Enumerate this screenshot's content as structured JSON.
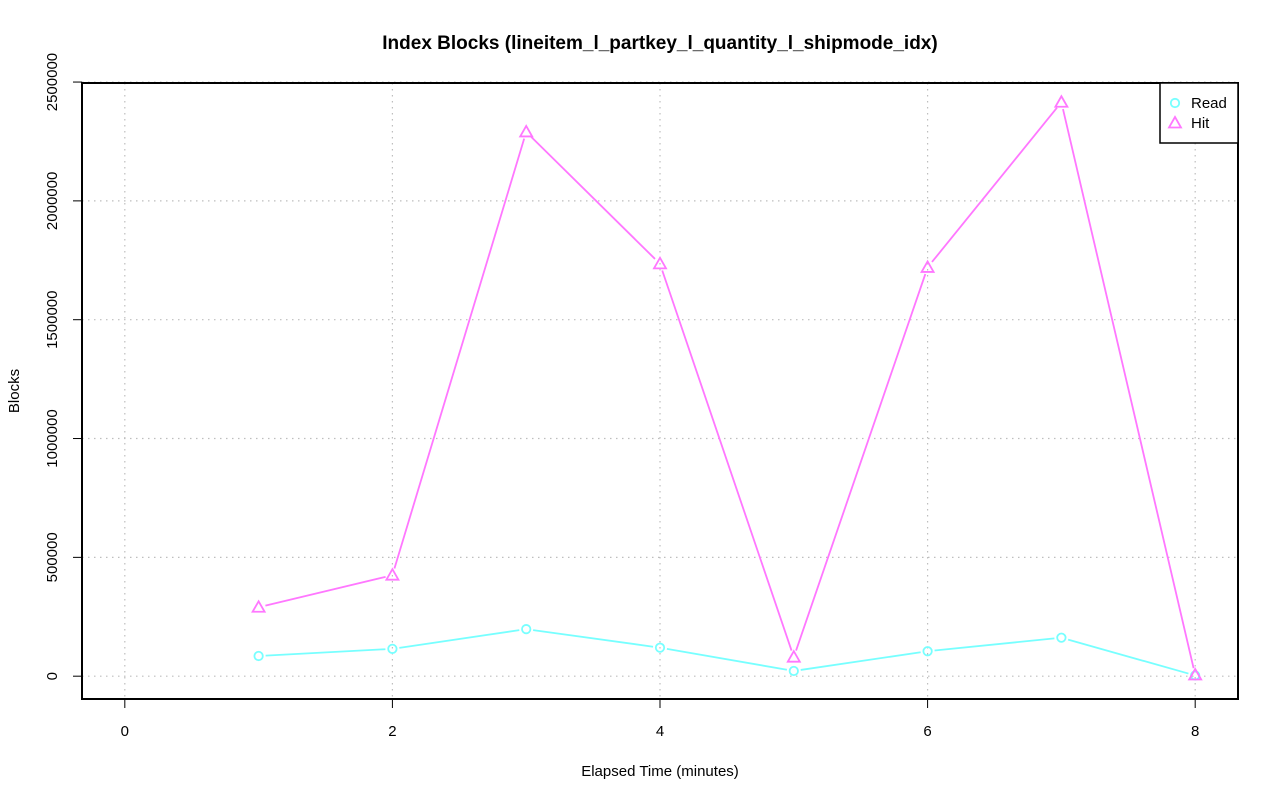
{
  "chart_data": {
    "type": "line",
    "title": "Index Blocks (lineitem_l_partkey_l_quantity_l_shipmode_idx)",
    "xlabel": "Elapsed Time (minutes)",
    "ylabel": "Blocks",
    "x": [
      1,
      2,
      3,
      4,
      5,
      6,
      7,
      8
    ],
    "xlim": [
      -0.32,
      8.32
    ],
    "ylim": [
      -96000,
      2496000
    ],
    "x_ticks": [
      0,
      2,
      4,
      6,
      8
    ],
    "y_ticks": [
      0,
      500000,
      1000000,
      1500000,
      2000000,
      2500000
    ],
    "x_tick_labels": [
      "0",
      "2",
      "4",
      "6",
      "8"
    ],
    "y_tick_labels": [
      "0",
      "500000",
      "1000000",
      "1500000",
      "2000000",
      "2500000"
    ],
    "grid": true,
    "legend_position": "top-right",
    "series": [
      {
        "name": "Read",
        "color": "#77ffff",
        "marker": "circle",
        "values": [
          85000,
          115000,
          198000,
          120000,
          22000,
          105000,
          162000,
          3000
        ]
      },
      {
        "name": "Hit",
        "color": "#ff77ff",
        "marker": "triangle",
        "values": [
          290000,
          425000,
          2290000,
          1735000,
          80000,
          1720000,
          2415000,
          5000
        ]
      }
    ]
  }
}
